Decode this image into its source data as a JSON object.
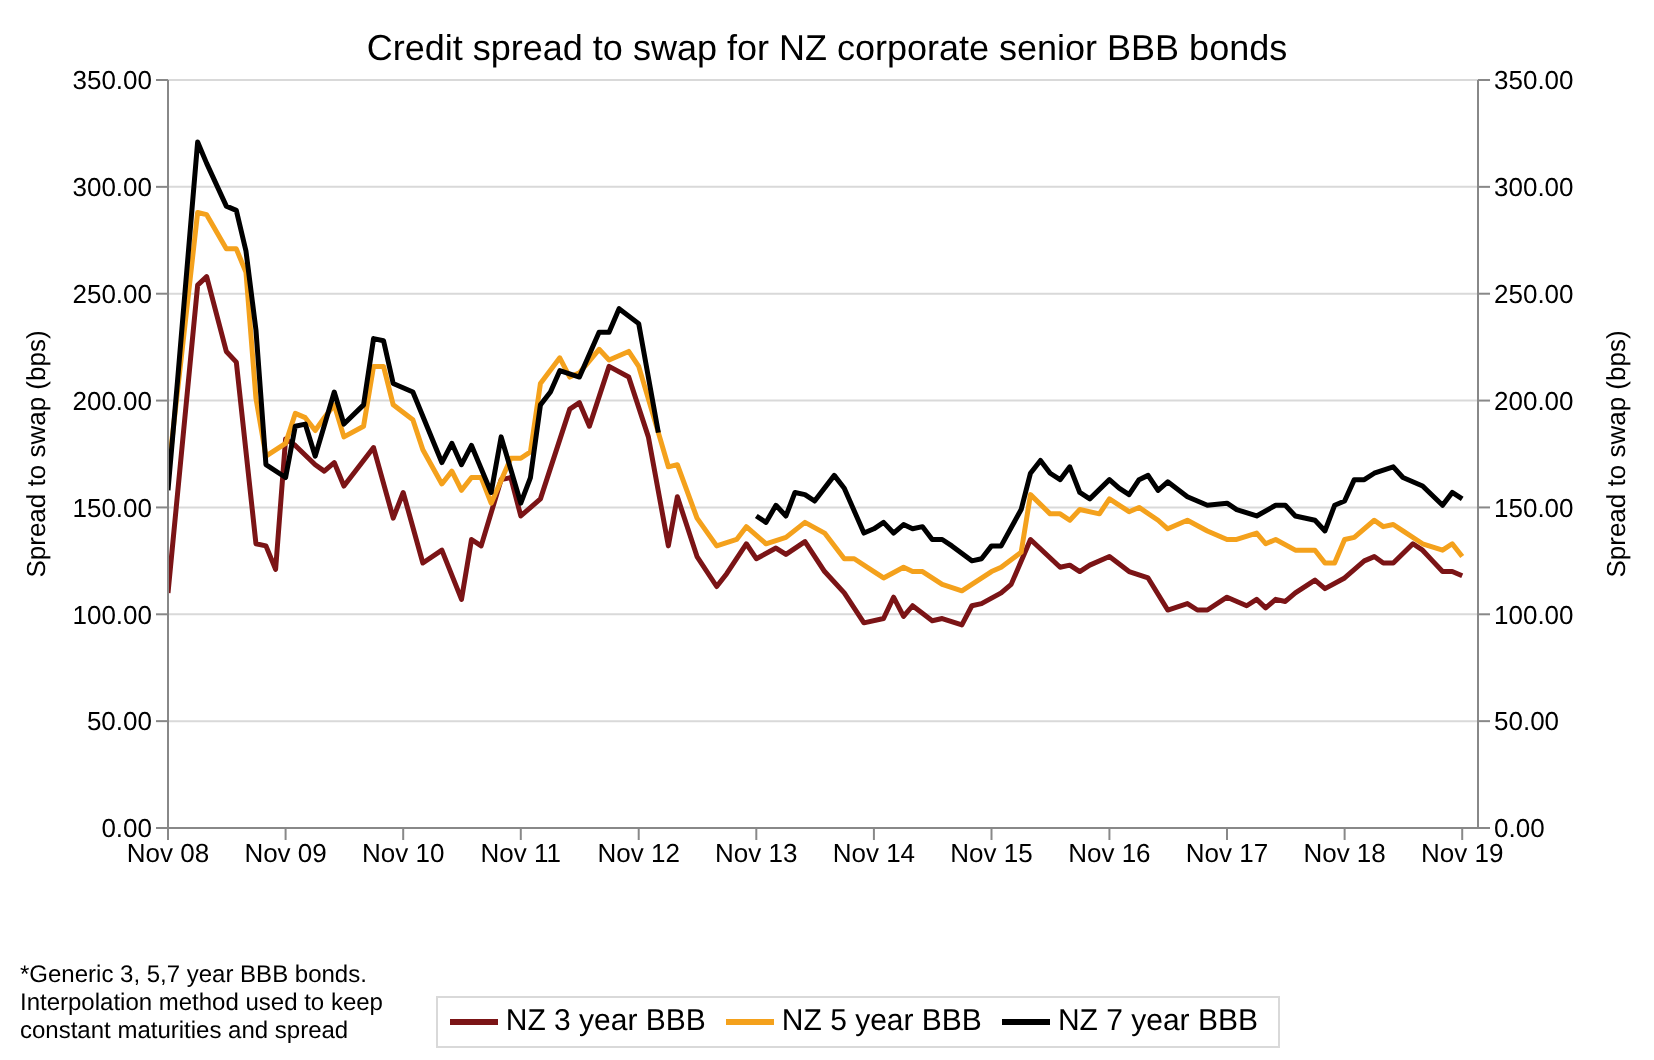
{
  "chart_data": {
    "type": "line",
    "title": "Credit spread to swap for NZ corporate senior BBB bonds",
    "ylabel": "Spread to swap (bps)",
    "y2label": "Spread to swap (bps)",
    "annotations": [
      "*Generic 3, 5,7 year BBB bonds. Interpolation method used to keep constant maturities and spread"
    ],
    "xlim": [
      "2008-11",
      "2019-12-20"
    ],
    "xticks": [
      {
        "value": "2008-11",
        "label": "Nov 08"
      },
      {
        "value": "2009-11",
        "label": "Nov 09"
      },
      {
        "value": "2010-11",
        "label": "Nov 10"
      },
      {
        "value": "2011-11",
        "label": "Nov 11"
      },
      {
        "value": "2012-11",
        "label": "Nov 12"
      },
      {
        "value": "2013-11",
        "label": "Nov 13"
      },
      {
        "value": "2014-11",
        "label": "Nov 14"
      },
      {
        "value": "2015-11",
        "label": "Nov 15"
      },
      {
        "value": "2016-11",
        "label": "Nov 16"
      },
      {
        "value": "2017-11",
        "label": "Nov 17"
      },
      {
        "value": "2018-11",
        "label": "Nov 18"
      },
      {
        "value": "2019-11",
        "label": "Nov 19"
      }
    ],
    "ylim": [
      0,
      350
    ],
    "yticks": [
      {
        "value": 0,
        "label": "0.00"
      },
      {
        "value": 50,
        "label": "50.00"
      },
      {
        "value": 100,
        "label": "100.00"
      },
      {
        "value": 150,
        "label": "150.00"
      },
      {
        "value": 200,
        "label": "200.00"
      },
      {
        "value": 250,
        "label": "250.00"
      },
      {
        "value": 300,
        "label": "300.00"
      },
      {
        "value": 350,
        "label": "350.00"
      }
    ],
    "y2lim": [
      0,
      350
    ],
    "y2ticks": [
      {
        "value": 0,
        "label": "0.00"
      },
      {
        "value": 50,
        "label": "50.00"
      },
      {
        "value": 100,
        "label": "100.00"
      },
      {
        "value": 150,
        "label": "150.00"
      },
      {
        "value": 200,
        "label": "200.00"
      },
      {
        "value": 250,
        "label": "250.00"
      },
      {
        "value": 300,
        "label": "300.00"
      },
      {
        "value": 350,
        "label": "350.00"
      }
    ],
    "grid": "y",
    "legend": "bottom",
    "line_style": "solid",
    "marker": "none",
    "series": [
      {
        "name": "NZ 3 year BBB",
        "color": "#7b1416",
        "x": [
          "2008-11",
          "2009-02",
          "2009-03",
          "2009-05",
          "2009-06",
          "2009-08",
          "2009-09",
          "2009-10",
          "2009-11",
          "2009-12",
          "2010-02",
          "2010-03",
          "2010-04",
          "2010-05",
          "2010-08",
          "2010-10",
          "2010-11",
          "2011-01",
          "2011-03",
          "2011-05",
          "2011-06",
          "2011-07",
          "2011-09",
          "2011-10",
          "2011-11",
          "2012-01",
          "2012-04",
          "2012-05",
          "2012-06",
          "2012-08",
          "2012-10",
          "2012-12",
          "2013-02",
          "2013-03",
          "2013-05",
          "2013-07",
          "2013-08",
          "2013-10",
          "2013-11",
          "2014-01",
          "2014-02",
          "2014-04",
          "2014-06",
          "2014-08",
          "2014-10",
          "2014-12",
          "2015-01",
          "2015-02",
          "2015-03",
          "2015-05",
          "2015-06",
          "2015-08",
          "2015-09",
          "2015-10",
          "2015-12",
          "2016-01",
          "2016-03",
          "2016-06",
          "2016-07",
          "2016-08",
          "2016-09",
          "2016-11",
          "2017-01",
          "2017-03",
          "2017-05",
          "2017-07",
          "2017-08",
          "2017-09",
          "2017-11",
          "2018-01",
          "2018-02",
          "2018-03",
          "2018-04",
          "2018-05",
          "2018-06",
          "2018-08",
          "2018-09",
          "2018-11",
          "2019-01",
          "2019-02",
          "2019-03",
          "2019-04",
          "2019-06",
          "2019-07",
          "2019-08",
          "2019-09",
          "2019-10",
          "2019-11"
        ],
        "values": [
          110,
          254,
          258,
          223,
          218,
          133,
          132,
          121,
          182,
          179,
          170,
          167,
          171,
          160,
          178,
          145,
          157,
          124,
          130,
          107,
          135,
          132,
          163,
          164,
          146,
          154,
          196,
          199,
          188,
          216,
          211,
          183,
          132,
          155,
          127,
          113,
          119,
          133,
          126,
          131,
          128,
          134,
          120,
          110,
          96,
          98,
          108,
          99,
          104,
          97,
          98,
          95,
          104,
          105,
          110,
          114,
          135,
          122,
          123,
          120,
          123,
          127,
          120,
          117,
          102,
          105,
          102,
          102,
          108,
          104,
          107,
          103,
          107,
          106,
          110,
          116,
          112,
          117,
          125,
          127,
          124,
          124,
          133,
          130,
          125,
          120,
          120,
          118
        ]
      },
      {
        "name": "NZ 5 year BBB",
        "color": "#f4a11c",
        "x": [
          "2008-11",
          "2009-02",
          "2009-03",
          "2009-05",
          "2009-06",
          "2009-07",
          "2009-08",
          "2009-09",
          "2009-11",
          "2009-12",
          "2010-01",
          "2010-02",
          "2010-03",
          "2010-04",
          "2010-05",
          "2010-07",
          "2010-08",
          "2010-09",
          "2010-10",
          "2010-12",
          "2011-01",
          "2011-03",
          "2011-04",
          "2011-05",
          "2011-06",
          "2011-07",
          "2011-08",
          "2011-10",
          "2011-11",
          "2011-12",
          "2012-01",
          "2012-03",
          "2012-04",
          "2012-05",
          "2012-07",
          "2012-08",
          "2012-10",
          "2012-11",
          "2013-01",
          "2013-02",
          "2013-03",
          "2013-05",
          "2013-07",
          "2013-09",
          "2013-10",
          "2013-12",
          "2014-02",
          "2014-04",
          "2014-06",
          "2014-08",
          "2014-09",
          "2014-11",
          "2014-12",
          "2015-02",
          "2015-03",
          "2015-04",
          "2015-06",
          "2015-08",
          "2015-09",
          "2015-11",
          "2015-12",
          "2016-02",
          "2016-03",
          "2016-05",
          "2016-06",
          "2016-07",
          "2016-08",
          "2016-10",
          "2016-11",
          "2017-01",
          "2017-02",
          "2017-04",
          "2017-05",
          "2017-07",
          "2017-09",
          "2017-11",
          "2017-12",
          "2018-02",
          "2018-03",
          "2018-04",
          "2018-06",
          "2018-08",
          "2018-09",
          "2018-10",
          "2018-11",
          "2018-12",
          "2019-02",
          "2019-03",
          "2019-04",
          "2019-05",
          "2019-07",
          "2019-09",
          "2019-10",
          "2019-11"
        ],
        "values": [
          165,
          288,
          287,
          271,
          271,
          260,
          201,
          174,
          180,
          194,
          192,
          186,
          192,
          198,
          183,
          188,
          216,
          216,
          198,
          191,
          177,
          161,
          167,
          158,
          164,
          164,
          152,
          173,
          173,
          176,
          208,
          220,
          211,
          213,
          224,
          219,
          223,
          216,
          185,
          169,
          170,
          145,
          132,
          135,
          141,
          133,
          136,
          143,
          138,
          126,
          126,
          120,
          117,
          122,
          120,
          120,
          114,
          111,
          114,
          120,
          122,
          129,
          156,
          147,
          147,
          144,
          149,
          147,
          154,
          148,
          150,
          144,
          140,
          144,
          139,
          135,
          135,
          138,
          133,
          135,
          130,
          130,
          124,
          124,
          135,
          136,
          144,
          141,
          142,
          139,
          133,
          130,
          133,
          127
        ]
      },
      {
        "name": "NZ 7 year BBB",
        "color": "#000000",
        "x": [
          "2008-11",
          "2008-12",
          "2009-02",
          "2009-03",
          "2009-05",
          "2009-06",
          "2009-07",
          "2009-08",
          "2009-09",
          "2009-11",
          "2009-12",
          "2010-01",
          "2010-02",
          "2010-04",
          "2010-05",
          "2010-07",
          "2010-08",
          "2010-09",
          "2010-10",
          "2010-12",
          "2011-03",
          "2011-04",
          "2011-05",
          "2011-06",
          "2011-08",
          "2011-09",
          "2011-11",
          "2011-12",
          "2012-01",
          "2012-02",
          "2012-03",
          "2012-05",
          "2012-07",
          "2012-08",
          "2012-09",
          "2012-11",
          "2013-01",
          "2013-06",
          "2013-11",
          "2013-12",
          "2014-01",
          "2014-02",
          "2014-03",
          "2014-04",
          "2014-05",
          "2014-07",
          "2014-08",
          "2014-10",
          "2014-11",
          "2014-12",
          "2015-01",
          "2015-02",
          "2015-03",
          "2015-04",
          "2015-05",
          "2015-06",
          "2015-07",
          "2015-09",
          "2015-10",
          "2015-11",
          "2015-12",
          "2016-02",
          "2016-03",
          "2016-04",
          "2016-05",
          "2016-06",
          "2016-07",
          "2016-08",
          "2016-09",
          "2016-11",
          "2016-12",
          "2017-01",
          "2017-02",
          "2017-03",
          "2017-04",
          "2017-05",
          "2017-07",
          "2017-09",
          "2017-11",
          "2017-12",
          "2018-02",
          "2018-04",
          "2018-05",
          "2018-06",
          "2018-08",
          "2018-09",
          "2018-10",
          "2018-11",
          "2018-12",
          "2019-01",
          "2019-02",
          "2019-04",
          "2019-05",
          "2019-07",
          "2019-09",
          "2019-10",
          "2019-11"
        ],
        "values": [
          158,
          210,
          321,
          311,
          291,
          289,
          270,
          233,
          170,
          164,
          188,
          189,
          174,
          204,
          189,
          198,
          229,
          228,
          208,
          204,
          171,
          180,
          170,
          179,
          157,
          183,
          152,
          164,
          198,
          204,
          214,
          211,
          232,
          232,
          243,
          236,
          185,
          null,
          146,
          143,
          151,
          146,
          157,
          156,
          153,
          165,
          159,
          138,
          140,
          143,
          138,
          142,
          140,
          141,
          135,
          135,
          132,
          125,
          126,
          132,
          132,
          149,
          166,
          172,
          166,
          163,
          169,
          157,
          154,
          163,
          159,
          156,
          163,
          165,
          158,
          162,
          155,
          151,
          152,
          149,
          146,
          151,
          151,
          146,
          144,
          139,
          151,
          153,
          163,
          163,
          166,
          169,
          164,
          160,
          151,
          157,
          154
        ]
      }
    ]
  }
}
